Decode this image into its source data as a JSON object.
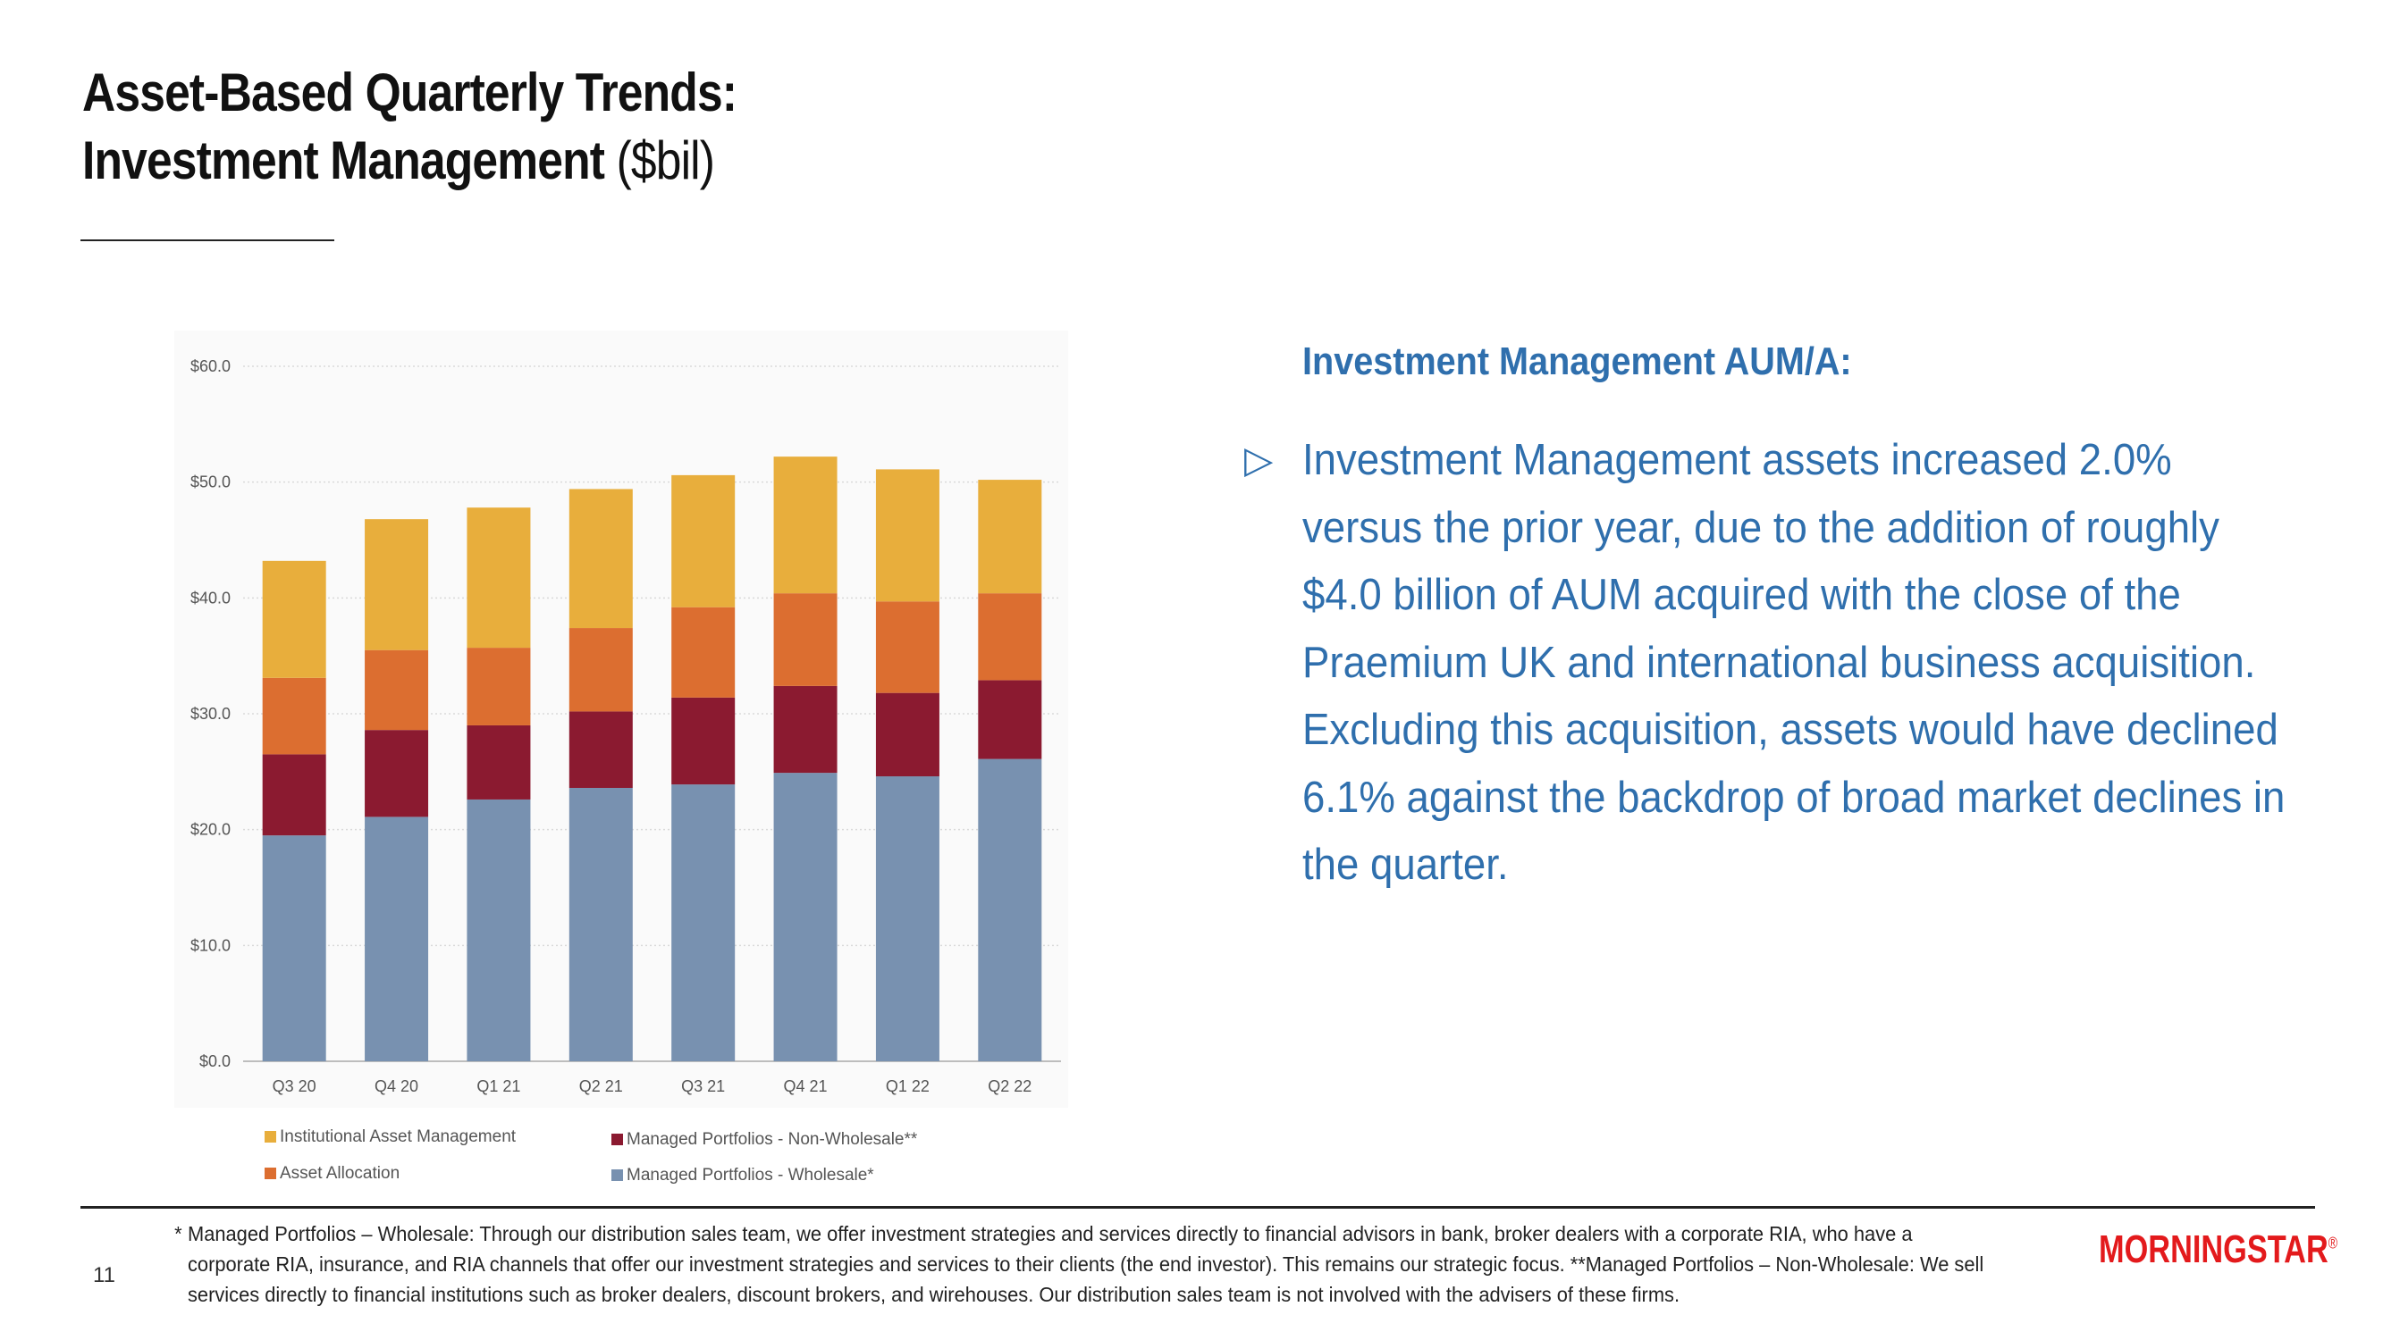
{
  "slide": {
    "title_line1": "Asset-Based Quarterly Trends:",
    "title_line2": "Investment Management",
    "title_unit": "($bil)",
    "page_number": "11"
  },
  "commentary": {
    "heading": "Investment Management AUM/A:",
    "bullet_marker": "▷",
    "bullet_text": "Investment Management assets increased 2.0% versus the prior year, due to the addition of roughly $4.0 billion of AUM acquired with the close of the Praemium UK and international business acquisition. Excluding this acquisition, assets would have declined 6.1% against the backdrop of broad market declines in the quarter."
  },
  "footnote": {
    "marker": "*",
    "text": "Managed Portfolios – Wholesale: Through our distribution sales team, we offer investment strategies and services directly to financial advisors in bank, broker dealers with a corporate RIA, who have a corporate RIA, insurance, and RIA channels that offer our investment strategies and services to their clients (the end investor). This remains our strategic focus. **Managed Portfolios – Non-Wholesale: We sell services directly to financial institutions such as broker dealers, discount brokers, and wirehouses. Our distribution sales team is not involved with the advisers of these firms."
  },
  "logo": {
    "text": "MORNINGSTAR",
    "mark": "®",
    "color": "#e31a1c"
  },
  "chart_data": {
    "type": "bar",
    "stacked": true,
    "title": "",
    "xlabel": "",
    "ylabel": "",
    "ylim": [
      0,
      60
    ],
    "yticks": [
      0,
      10,
      20,
      30,
      40,
      50,
      60
    ],
    "ytick_labels": [
      "$0.0",
      "$10.0",
      "$20.0",
      "$30.0",
      "$40.0",
      "$50.0",
      "$60.0"
    ],
    "grid": true,
    "categories": [
      "Q3 20",
      "Q4 20",
      "Q1 21",
      "Q2 21",
      "Q3 21",
      "Q4 21",
      "Q1 22",
      "Q2 22"
    ],
    "series": [
      {
        "name": "Managed Portfolios - Wholesale*",
        "color": "#7891b0",
        "values": [
          19.5,
          21.1,
          22.6,
          23.6,
          23.9,
          24.9,
          24.6,
          26.1
        ]
      },
      {
        "name": "Managed Portfolios - Non-Wholesale**",
        "color": "#8b1a30",
        "values": [
          7.0,
          7.5,
          6.4,
          6.6,
          7.5,
          7.5,
          7.2,
          6.8
        ]
      },
      {
        "name": "Asset Allocation",
        "color": "#dc6e30",
        "values": [
          6.6,
          6.9,
          6.7,
          7.2,
          7.8,
          8.0,
          7.9,
          7.5
        ]
      },
      {
        "name": "Institutional Asset Management",
        "color": "#e8ae3c",
        "values": [
          10.1,
          11.3,
          12.1,
          12.0,
          11.4,
          11.8,
          11.4,
          9.8
        ]
      }
    ],
    "legend_position": "bottom",
    "legend_order": [
      3,
      1,
      2,
      0
    ]
  }
}
